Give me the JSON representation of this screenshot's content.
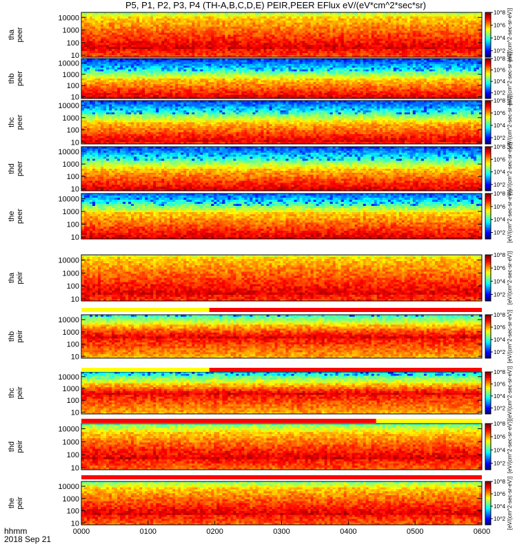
{
  "title": "P5, P1, P2, P3, P4 (TH-A,B,C,D,E) PEIR,PEER EFlux eV/(eV*cm^2*sec*sr)",
  "colors": {
    "flag_red": "#ff0000",
    "flag_yellow": "#ffff00",
    "background": "#ffffff"
  },
  "chart_data": {
    "type": "heatmap",
    "title": "P5, P1, P2, P3, P4 (TH-A,B,C,D,E) PEIR,PEER EFlux eV/(eV*cm^2*sec*sr)",
    "xaxis": {
      "label": "hhmm",
      "date_label": "2018 Sep 21",
      "range": [
        "00:00",
        "06:00"
      ],
      "ticks": [
        "0000",
        "0100",
        "0200",
        "0300",
        "0400",
        "0500",
        "0600"
      ]
    },
    "yaxis": {
      "scale": "log",
      "unit": "eV",
      "range": [
        7,
        25000
      ],
      "ticks": [
        "10",
        "100",
        "1000",
        "10000"
      ]
    },
    "colorbar": {
      "scale": "log",
      "label": "[eV/(cm^2-sec-sr-eV)]",
      "range": [
        10,
        100000000
      ],
      "ticks": [
        "10^2",
        "10^4",
        "10^6",
        "10^8"
      ]
    },
    "panels": [
      {
        "ylabel": "tha peer",
        "base": 5.5,
        "core_lo": 1.5,
        "core_hi": 4.0,
        "gap_after": 0
      },
      {
        "ylabel": "thb peer",
        "base": 6.5,
        "core_lo": 0.9,
        "core_hi": 2.6,
        "gap_after": 0
      },
      {
        "ylabel": "thc peer",
        "base": 4.0,
        "core_lo": 1.0,
        "core_hi": 2.7,
        "gap_after": 0
      },
      {
        "ylabel": "thd peer",
        "base": 5.8,
        "core_lo": 0.9,
        "core_hi": 2.7,
        "gap_after": 0
      },
      {
        "ylabel": "the peer",
        "base": 6.2,
        "core_lo": 0.9,
        "core_hi": 2.9,
        "gap_after": 1
      },
      {
        "ylabel": "tha peir",
        "base": 4.0,
        "core_lo": 1.3,
        "core_hi": 4.2,
        "gap_after": 1
      },
      {
        "ylabel": "thb peir",
        "base": 4.8,
        "core_lo": 2.5,
        "core_hi": 3.6,
        "gap_after": 1
      },
      {
        "ylabel": "thc peir",
        "base": 4.2,
        "core_lo": 2.5,
        "core_hi": 3.4,
        "gap_after": 1
      },
      {
        "ylabel": "thd peir",
        "base": 6.2,
        "core_lo": 1.7,
        "core_hi": 3.8,
        "gap_after": 1
      },
      {
        "ylabel": "the peir",
        "base": 6.3,
        "core_lo": 1.7,
        "core_hi": 3.9,
        "gap_after": 0
      }
    ],
    "flag_bars": [
      {
        "after_panel": 5,
        "yellow_until": "01:55"
      },
      {
        "after_panel": 6,
        "yellow_until": "01:55"
      },
      {
        "after_panel": 7,
        "yellow_until": "04:25",
        "reverse": true
      },
      {
        "after_panel": 8,
        "yellow_until": "00:00"
      }
    ]
  }
}
